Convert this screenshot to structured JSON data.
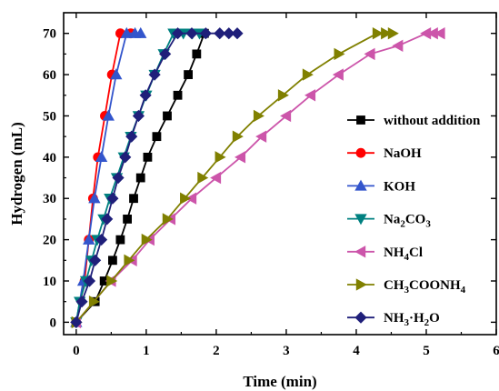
{
  "chart_data": {
    "type": "line",
    "xlabel": "Time (min)",
    "ylabel": "Hydrogen (mL)",
    "xlim": [
      -0.18,
      6
    ],
    "ylim": [
      -3,
      75
    ],
    "xticks": [
      0,
      1,
      2,
      3,
      4,
      5,
      6
    ],
    "yticks": [
      0,
      10,
      20,
      30,
      40,
      50,
      60,
      70
    ],
    "legend_position": "right",
    "series": [
      {
        "name": "without addition",
        "color": "#000000",
        "marker": "square",
        "x": [
          0,
          0.27,
          0.4,
          0.52,
          0.63,
          0.73,
          0.82,
          0.92,
          1.02,
          1.15,
          1.3,
          1.45,
          1.6,
          1.72,
          1.83
        ],
        "y": [
          0,
          5,
          10,
          15,
          20,
          25,
          30,
          35,
          40,
          45,
          50,
          55,
          60,
          65,
          70
        ]
      },
      {
        "name": "NaOH",
        "color": "#ff0000",
        "marker": "circle",
        "x": [
          0,
          0.12,
          0.18,
          0.24,
          0.31,
          0.41,
          0.51,
          0.63,
          0.78
        ],
        "y": [
          0,
          10,
          20,
          30,
          40,
          50,
          60,
          70,
          70
        ]
      },
      {
        "name": "KOH",
        "color": "#3355cc",
        "marker": "triangle-up",
        "x": [
          0,
          0.1,
          0.18,
          0.26,
          0.36,
          0.46,
          0.57,
          0.72,
          0.84,
          0.92
        ],
        "y": [
          0,
          10,
          20,
          30,
          40,
          50,
          60,
          70,
          70,
          70
        ]
      },
      {
        "name": "Na2CO3",
        "color": "#008080",
        "marker": "triangle-down",
        "x": [
          0,
          0.05,
          0.14,
          0.22,
          0.3,
          0.39,
          0.48,
          0.58,
          0.68,
          0.78,
          0.89,
          1.0,
          1.12,
          1.25,
          1.39,
          1.53,
          1.66,
          1.76
        ],
        "y": [
          0,
          5,
          10,
          15,
          20,
          25,
          30,
          35,
          40,
          45,
          50,
          55,
          60,
          65,
          70,
          70,
          70,
          70
        ]
      },
      {
        "name": "NH4Cl",
        "color": "#cc55aa",
        "marker": "triangle-left",
        "x": [
          0,
          0.5,
          0.8,
          1.05,
          1.35,
          1.65,
          2.0,
          2.35,
          2.65,
          3.0,
          3.35,
          3.75,
          4.2,
          4.6,
          5.0,
          5.1,
          5.2
        ],
        "y": [
          0,
          10,
          15,
          20,
          25,
          30,
          35,
          40,
          45,
          50,
          55,
          60,
          65,
          67,
          70,
          70,
          70
        ]
      },
      {
        "name": "CH3COONH4",
        "color": "#808000",
        "marker": "triangle-right",
        "x": [
          0,
          0.25,
          0.5,
          0.75,
          1.0,
          1.3,
          1.55,
          1.8,
          2.05,
          2.3,
          2.6,
          2.95,
          3.3,
          3.75,
          4.3,
          4.42,
          4.52
        ],
        "y": [
          0,
          5,
          10,
          15,
          20,
          25,
          30,
          35,
          40,
          45,
          50,
          55,
          60,
          65,
          70,
          70,
          70
        ]
      },
      {
        "name": "NH3·H2O",
        "color": "#1f1f7a",
        "marker": "diamond",
        "x": [
          0,
          0.08,
          0.19,
          0.27,
          0.36,
          0.44,
          0.52,
          0.6,
          0.7,
          0.79,
          0.89,
          0.99,
          1.12,
          1.27,
          1.45,
          1.65,
          1.85,
          2.05,
          2.18,
          2.3
        ],
        "y": [
          0,
          5,
          10,
          15,
          20,
          25,
          30,
          35,
          40,
          45,
          50,
          55,
          60,
          65,
          70,
          70,
          70,
          70,
          70,
          70
        ]
      }
    ]
  }
}
